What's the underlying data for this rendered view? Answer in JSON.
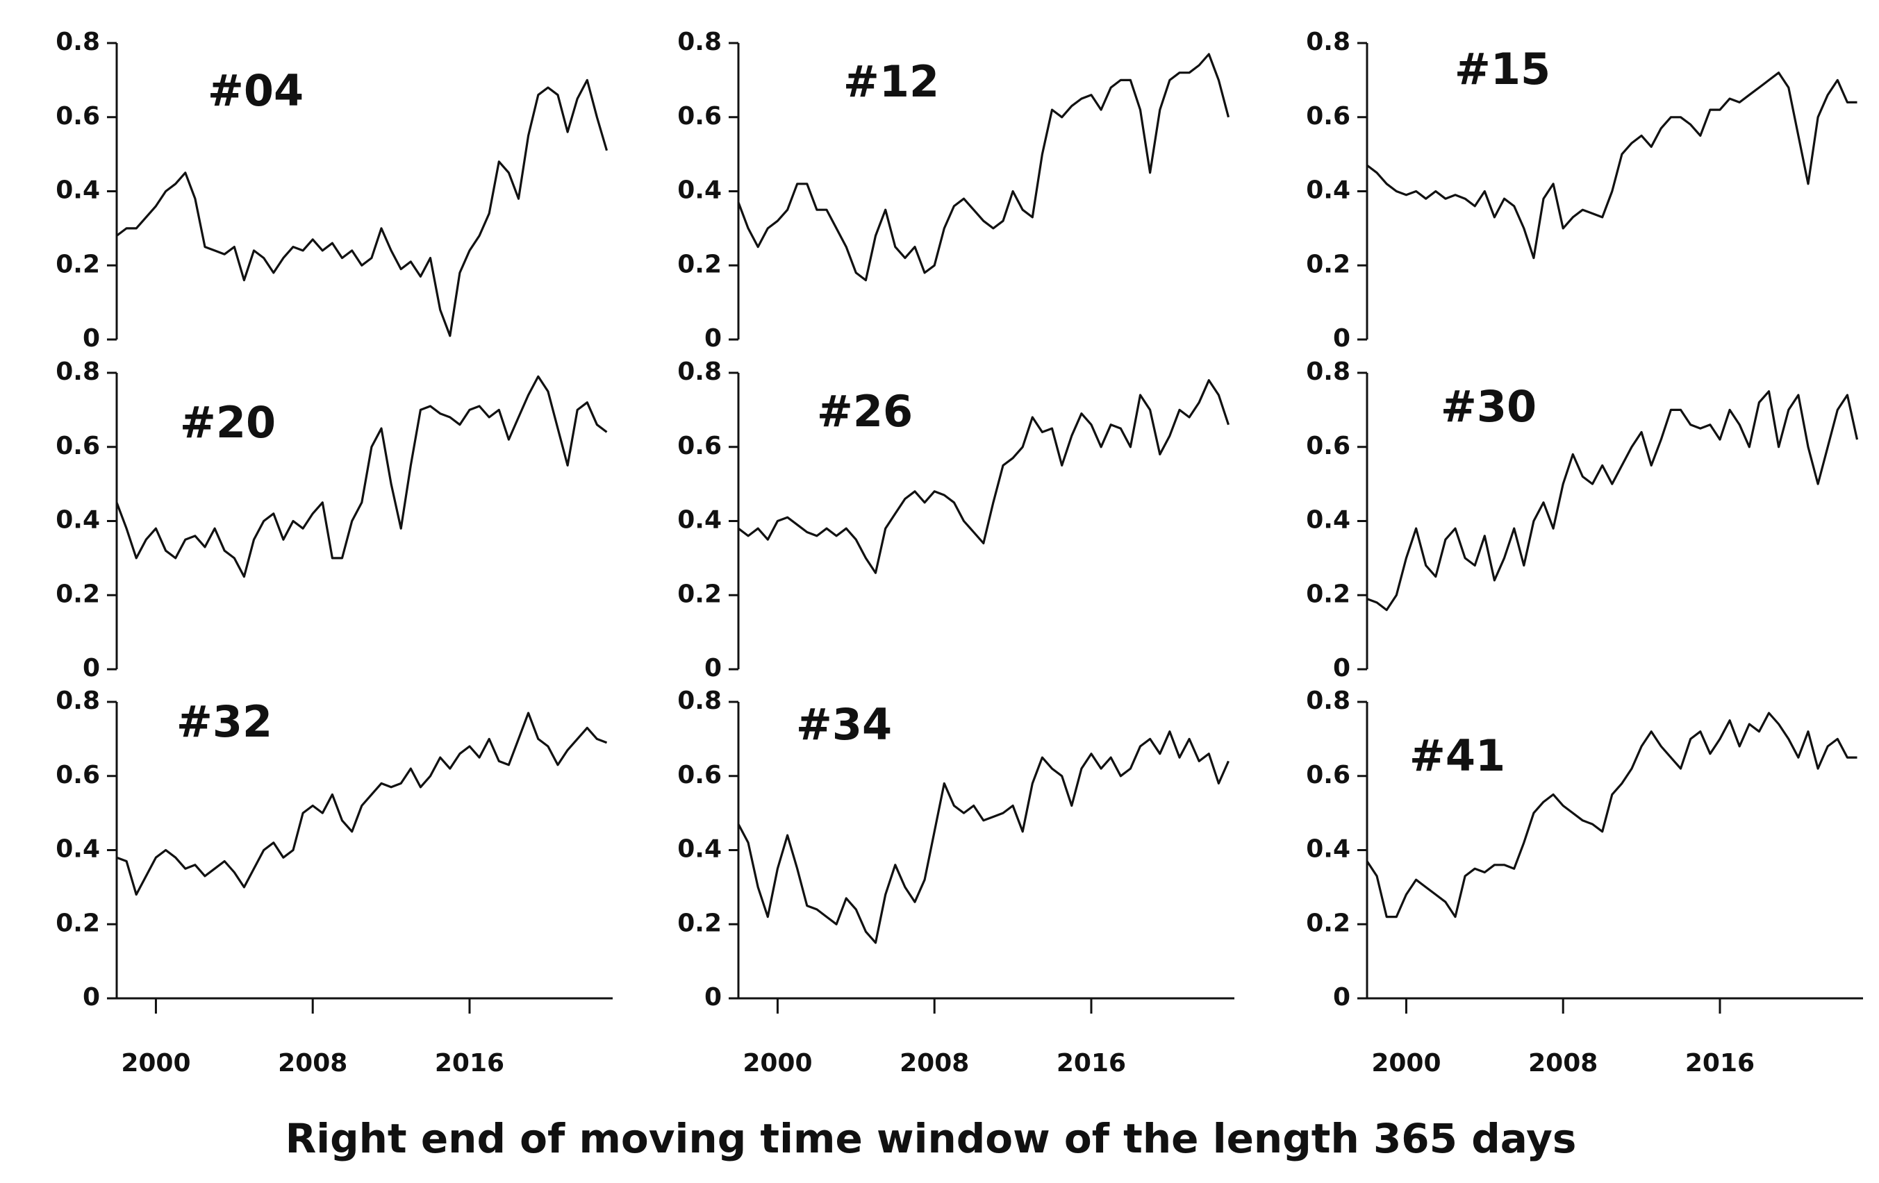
{
  "figure": {
    "xlabel": "Right end of moving time window of the length 365 days"
  },
  "chart_data": [
    {
      "type": "line",
      "title": "#04",
      "color": "#111111",
      "xlim": [
        1998,
        2023.3
      ],
      "ylim": [
        0,
        0.8
      ],
      "yticks": [
        0,
        0.2,
        0.4,
        0.6,
        0.8
      ],
      "x": [
        1998,
        1998.5,
        1999,
        1999.5,
        2000,
        2000.5,
        2001,
        2001.5,
        2002,
        2002.5,
        2003,
        2003.5,
        2004,
        2004.5,
        2005,
        2005.5,
        2006,
        2006.5,
        2007,
        2007.5,
        2008,
        2008.5,
        2009,
        2009.5,
        2010,
        2010.5,
        2011,
        2011.5,
        2012,
        2012.5,
        2013,
        2013.5,
        2014,
        2014.5,
        2015,
        2015.5,
        2016,
        2016.5,
        2017,
        2017.5,
        2018,
        2018.5,
        2019,
        2019.5,
        2020,
        2020.5,
        2021,
        2021.5,
        2022,
        2022.5,
        2023
      ],
      "values": [
        0.28,
        0.3,
        0.3,
        0.33,
        0.36,
        0.4,
        0.42,
        0.45,
        0.38,
        0.25,
        0.24,
        0.23,
        0.25,
        0.16,
        0.24,
        0.22,
        0.18,
        0.22,
        0.25,
        0.24,
        0.27,
        0.24,
        0.26,
        0.22,
        0.24,
        0.2,
        0.22,
        0.3,
        0.24,
        0.19,
        0.21,
        0.17,
        0.22,
        0.08,
        0.01,
        0.18,
        0.24,
        0.28,
        0.34,
        0.48,
        0.45,
        0.38,
        0.55,
        0.66,
        0.68,
        0.66,
        0.56,
        0.65,
        0.7,
        0.6,
        0.51
      ]
    },
    {
      "type": "line",
      "title": "#12",
      "color": "#111111",
      "xlim": [
        1998,
        2023.3
      ],
      "ylim": [
        0,
        0.8
      ],
      "yticks": [
        0,
        0.2,
        0.4,
        0.6,
        0.8
      ],
      "x": [
        1998,
        1998.5,
        1999,
        1999.5,
        2000,
        2000.5,
        2001,
        2001.5,
        2002,
        2002.5,
        2003,
        2003.5,
        2004,
        2004.5,
        2005,
        2005.5,
        2006,
        2006.5,
        2007,
        2007.5,
        2008,
        2008.5,
        2009,
        2009.5,
        2010,
        2010.5,
        2011,
        2011.5,
        2012,
        2012.5,
        2013,
        2013.5,
        2014,
        2014.5,
        2015,
        2015.5,
        2016,
        2016.5,
        2017,
        2017.5,
        2018,
        2018.5,
        2019,
        2019.5,
        2020,
        2020.5,
        2021,
        2021.5,
        2022,
        2022.5,
        2023
      ],
      "values": [
        0.37,
        0.3,
        0.25,
        0.3,
        0.32,
        0.35,
        0.42,
        0.42,
        0.35,
        0.35,
        0.3,
        0.25,
        0.18,
        0.16,
        0.28,
        0.35,
        0.25,
        0.22,
        0.25,
        0.18,
        0.2,
        0.3,
        0.36,
        0.38,
        0.35,
        0.32,
        0.3,
        0.32,
        0.4,
        0.35,
        0.33,
        0.5,
        0.62,
        0.6,
        0.63,
        0.65,
        0.66,
        0.62,
        0.68,
        0.7,
        0.7,
        0.62,
        0.45,
        0.62,
        0.7,
        0.72,
        0.72,
        0.74,
        0.77,
        0.7,
        0.6
      ]
    },
    {
      "type": "line",
      "title": "#15",
      "color": "#111111",
      "xlim": [
        1998,
        2023.3
      ],
      "ylim": [
        0,
        0.8
      ],
      "yticks": [
        0,
        0.2,
        0.4,
        0.6,
        0.8
      ],
      "x": [
        1998,
        1998.5,
        1999,
        1999.5,
        2000,
        2000.5,
        2001,
        2001.5,
        2002,
        2002.5,
        2003,
        2003.5,
        2004,
        2004.5,
        2005,
        2005.5,
        2006,
        2006.5,
        2007,
        2007.5,
        2008,
        2008.5,
        2009,
        2009.5,
        2010,
        2010.5,
        2011,
        2011.5,
        2012,
        2012.5,
        2013,
        2013.5,
        2014,
        2014.5,
        2015,
        2015.5,
        2016,
        2016.5,
        2017,
        2017.5,
        2018,
        2018.5,
        2019,
        2019.5,
        2020,
        2020.5,
        2021,
        2021.5,
        2022,
        2022.5,
        2023
      ],
      "values": [
        0.47,
        0.45,
        0.42,
        0.4,
        0.39,
        0.4,
        0.38,
        0.4,
        0.38,
        0.39,
        0.38,
        0.36,
        0.4,
        0.33,
        0.38,
        0.36,
        0.3,
        0.22,
        0.38,
        0.42,
        0.3,
        0.33,
        0.35,
        0.34,
        0.33,
        0.4,
        0.5,
        0.53,
        0.55,
        0.52,
        0.57,
        0.6,
        0.6,
        0.58,
        0.55,
        0.62,
        0.62,
        0.65,
        0.64,
        0.66,
        0.68,
        0.7,
        0.72,
        0.68,
        0.55,
        0.42,
        0.6,
        0.66,
        0.7,
        0.64,
        0.64
      ]
    },
    {
      "type": "line",
      "title": "#20",
      "color": "#111111",
      "xlim": [
        1998,
        2023.3
      ],
      "ylim": [
        0,
        0.8
      ],
      "yticks": [
        0,
        0.2,
        0.4,
        0.6,
        0.8
      ],
      "x": [
        1998,
        1998.5,
        1999,
        1999.5,
        2000,
        2000.5,
        2001,
        2001.5,
        2002,
        2002.5,
        2003,
        2003.5,
        2004,
        2004.5,
        2005,
        2005.5,
        2006,
        2006.5,
        2007,
        2007.5,
        2008,
        2008.5,
        2009,
        2009.5,
        2010,
        2010.5,
        2011,
        2011.5,
        2012,
        2012.5,
        2013,
        2013.5,
        2014,
        2014.5,
        2015,
        2015.5,
        2016,
        2016.5,
        2017,
        2017.5,
        2018,
        2018.5,
        2019,
        2019.5,
        2020,
        2020.5,
        2021,
        2021.5,
        2022,
        2022.5,
        2023
      ],
      "values": [
        0.45,
        0.38,
        0.3,
        0.35,
        0.38,
        0.32,
        0.3,
        0.35,
        0.36,
        0.33,
        0.38,
        0.32,
        0.3,
        0.25,
        0.35,
        0.4,
        0.42,
        0.35,
        0.4,
        0.38,
        0.42,
        0.45,
        0.3,
        0.3,
        0.4,
        0.45,
        0.6,
        0.65,
        0.5,
        0.38,
        0.55,
        0.7,
        0.71,
        0.69,
        0.68,
        0.66,
        0.7,
        0.71,
        0.68,
        0.7,
        0.62,
        0.68,
        0.74,
        0.79,
        0.75,
        0.65,
        0.55,
        0.7,
        0.72,
        0.66,
        0.64
      ]
    },
    {
      "type": "line",
      "title": "#26",
      "color": "#111111",
      "xlim": [
        1998,
        2023.3
      ],
      "ylim": [
        0,
        0.8
      ],
      "yticks": [
        0,
        0.2,
        0.4,
        0.6,
        0.8
      ],
      "x": [
        1998,
        1998.5,
        1999,
        1999.5,
        2000,
        2000.5,
        2001,
        2001.5,
        2002,
        2002.5,
        2003,
        2003.5,
        2004,
        2004.5,
        2005,
        2005.5,
        2006,
        2006.5,
        2007,
        2007.5,
        2008,
        2008.5,
        2009,
        2009.5,
        2010,
        2010.5,
        2011,
        2011.5,
        2012,
        2012.5,
        2013,
        2013.5,
        2014,
        2014.5,
        2015,
        2015.5,
        2016,
        2016.5,
        2017,
        2017.5,
        2018,
        2018.5,
        2019,
        2019.5,
        2020,
        2020.5,
        2021,
        2021.5,
        2022,
        2022.5,
        2023
      ],
      "values": [
        0.38,
        0.36,
        0.38,
        0.35,
        0.4,
        0.41,
        0.39,
        0.37,
        0.36,
        0.38,
        0.36,
        0.38,
        0.35,
        0.3,
        0.26,
        0.38,
        0.42,
        0.46,
        0.48,
        0.45,
        0.48,
        0.47,
        0.45,
        0.4,
        0.37,
        0.34,
        0.45,
        0.55,
        0.57,
        0.6,
        0.68,
        0.64,
        0.65,
        0.55,
        0.63,
        0.69,
        0.66,
        0.6,
        0.66,
        0.65,
        0.6,
        0.74,
        0.7,
        0.58,
        0.63,
        0.7,
        0.68,
        0.72,
        0.78,
        0.74,
        0.66
      ]
    },
    {
      "type": "line",
      "title": "#30",
      "color": "#111111",
      "xlim": [
        1998,
        2023.3
      ],
      "ylim": [
        0,
        0.8
      ],
      "yticks": [
        0,
        0.2,
        0.4,
        0.6,
        0.8
      ],
      "x": [
        1998,
        1998.5,
        1999,
        1999.5,
        2000,
        2000.5,
        2001,
        2001.5,
        2002,
        2002.5,
        2003,
        2003.5,
        2004,
        2004.5,
        2005,
        2005.5,
        2006,
        2006.5,
        2007,
        2007.5,
        2008,
        2008.5,
        2009,
        2009.5,
        2010,
        2010.5,
        2011,
        2011.5,
        2012,
        2012.5,
        2013,
        2013.5,
        2014,
        2014.5,
        2015,
        2015.5,
        2016,
        2016.5,
        2017,
        2017.5,
        2018,
        2018.5,
        2019,
        2019.5,
        2020,
        2020.5,
        2021,
        2021.5,
        2022,
        2022.5,
        2023
      ],
      "values": [
        0.19,
        0.18,
        0.16,
        0.2,
        0.3,
        0.38,
        0.28,
        0.25,
        0.35,
        0.38,
        0.3,
        0.28,
        0.36,
        0.24,
        0.3,
        0.38,
        0.28,
        0.4,
        0.45,
        0.38,
        0.5,
        0.58,
        0.52,
        0.5,
        0.55,
        0.5,
        0.55,
        0.6,
        0.64,
        0.55,
        0.62,
        0.7,
        0.7,
        0.66,
        0.65,
        0.66,
        0.62,
        0.7,
        0.66,
        0.6,
        0.72,
        0.75,
        0.6,
        0.7,
        0.74,
        0.6,
        0.5,
        0.6,
        0.7,
        0.74,
        0.62
      ]
    },
    {
      "type": "line",
      "title": "#32",
      "color": "#111111",
      "xlim": [
        1998,
        2023.3
      ],
      "ylim": [
        0,
        0.8
      ],
      "yticks": [
        0,
        0.2,
        0.4,
        0.6,
        0.8
      ],
      "xticks": [
        2000,
        2008,
        2016
      ],
      "x": [
        1998,
        1998.5,
        1999,
        1999.5,
        2000,
        2000.5,
        2001,
        2001.5,
        2002,
        2002.5,
        2003,
        2003.5,
        2004,
        2004.5,
        2005,
        2005.5,
        2006,
        2006.5,
        2007,
        2007.5,
        2008,
        2008.5,
        2009,
        2009.5,
        2010,
        2010.5,
        2011,
        2011.5,
        2012,
        2012.5,
        2013,
        2013.5,
        2014,
        2014.5,
        2015,
        2015.5,
        2016,
        2016.5,
        2017,
        2017.5,
        2018,
        2018.5,
        2019,
        2019.5,
        2020,
        2020.5,
        2021,
        2021.5,
        2022,
        2022.5,
        2023
      ],
      "values": [
        0.38,
        0.37,
        0.28,
        0.33,
        0.38,
        0.4,
        0.38,
        0.35,
        0.36,
        0.33,
        0.35,
        0.37,
        0.34,
        0.3,
        0.35,
        0.4,
        0.42,
        0.38,
        0.4,
        0.5,
        0.52,
        0.5,
        0.55,
        0.48,
        0.45,
        0.52,
        0.55,
        0.58,
        0.57,
        0.58,
        0.62,
        0.57,
        0.6,
        0.65,
        0.62,
        0.66,
        0.68,
        0.65,
        0.7,
        0.64,
        0.63,
        0.7,
        0.77,
        0.7,
        0.68,
        0.63,
        0.67,
        0.7,
        0.73,
        0.7,
        0.69
      ]
    },
    {
      "type": "line",
      "title": "#34",
      "color": "#111111",
      "xlim": [
        1998,
        2023.3
      ],
      "ylim": [
        0,
        0.8
      ],
      "yticks": [
        0,
        0.2,
        0.4,
        0.6,
        0.8
      ],
      "xticks": [
        2000,
        2008,
        2016
      ],
      "x": [
        1998,
        1998.5,
        1999,
        1999.5,
        2000,
        2000.5,
        2001,
        2001.5,
        2002,
        2002.5,
        2003,
        2003.5,
        2004,
        2004.5,
        2005,
        2005.5,
        2006,
        2006.5,
        2007,
        2007.5,
        2008,
        2008.5,
        2009,
        2009.5,
        2010,
        2010.5,
        2011,
        2011.5,
        2012,
        2012.5,
        2013,
        2013.5,
        2014,
        2014.5,
        2015,
        2015.5,
        2016,
        2016.5,
        2017,
        2017.5,
        2018,
        2018.5,
        2019,
        2019.5,
        2020,
        2020.5,
        2021,
        2021.5,
        2022,
        2022.5,
        2023
      ],
      "values": [
        0.47,
        0.42,
        0.3,
        0.22,
        0.35,
        0.44,
        0.35,
        0.25,
        0.24,
        0.22,
        0.2,
        0.27,
        0.24,
        0.18,
        0.15,
        0.28,
        0.36,
        0.3,
        0.26,
        0.32,
        0.45,
        0.58,
        0.52,
        0.5,
        0.52,
        0.48,
        0.49,
        0.5,
        0.52,
        0.45,
        0.58,
        0.65,
        0.62,
        0.6,
        0.52,
        0.62,
        0.66,
        0.62,
        0.65,
        0.6,
        0.62,
        0.68,
        0.7,
        0.66,
        0.72,
        0.65,
        0.7,
        0.64,
        0.66,
        0.58,
        0.64
      ]
    },
    {
      "type": "line",
      "title": "#41",
      "color": "#111111",
      "xlim": [
        1998,
        2023.3
      ],
      "ylim": [
        0,
        0.8
      ],
      "yticks": [
        0,
        0.2,
        0.4,
        0.6,
        0.8
      ],
      "xticks": [
        2000,
        2008,
        2016
      ],
      "x": [
        1998,
        1998.5,
        1999,
        1999.5,
        2000,
        2000.5,
        2001,
        2001.5,
        2002,
        2002.5,
        2003,
        2003.5,
        2004,
        2004.5,
        2005,
        2005.5,
        2006,
        2006.5,
        2007,
        2007.5,
        2008,
        2008.5,
        2009,
        2009.5,
        2010,
        2010.5,
        2011,
        2011.5,
        2012,
        2012.5,
        2013,
        2013.5,
        2014,
        2014.5,
        2015,
        2015.5,
        2016,
        2016.5,
        2017,
        2017.5,
        2018,
        2018.5,
        2019,
        2019.5,
        2020,
        2020.5,
        2021,
        2021.5,
        2022,
        2022.5,
        2023
      ],
      "values": [
        0.37,
        0.33,
        0.22,
        0.22,
        0.28,
        0.32,
        0.3,
        0.28,
        0.26,
        0.22,
        0.33,
        0.35,
        0.34,
        0.36,
        0.36,
        0.35,
        0.42,
        0.5,
        0.53,
        0.55,
        0.52,
        0.5,
        0.48,
        0.47,
        0.45,
        0.55,
        0.58,
        0.62,
        0.68,
        0.72,
        0.68,
        0.65,
        0.62,
        0.7,
        0.72,
        0.66,
        0.7,
        0.75,
        0.68,
        0.74,
        0.72,
        0.77,
        0.74,
        0.7,
        0.65,
        0.72,
        0.62,
        0.68,
        0.7,
        0.65,
        0.65
      ]
    }
  ]
}
